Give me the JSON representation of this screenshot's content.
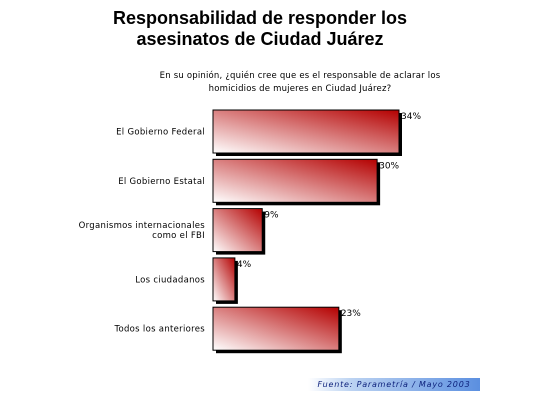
{
  "chart_data": {
    "type": "bar",
    "orientation": "horizontal",
    "title": "Responsabilidad de responder los asesinatos de Ciudad Juárez",
    "title_lines": [
      "Responsabilidad de responder los",
      "asesinatos de Ciudad Juárez"
    ],
    "subtitle": "En su opinión, ¿quién cree que es el responsable de aclarar los homicidios de mujeres en Ciudad Juárez?",
    "subtitle_lines": [
      "En su opinión, ¿quién cree que es el responsable de aclarar los",
      "homicidios de mujeres en Ciudad Juárez?"
    ],
    "categories": [
      [
        "El Gobierno Federal"
      ],
      [
        "El Gobierno Estatal"
      ],
      [
        "Organismos internacionales",
        "como el FBI"
      ],
      [
        "Los ciudadanos"
      ],
      [
        "Todos los anteriores"
      ]
    ],
    "values": [
      34,
      30,
      9,
      4,
      23
    ],
    "value_labels": [
      "34%",
      "30%",
      "9%",
      "4%",
      "23%"
    ],
    "xlim": [
      0,
      34
    ],
    "unit": "%",
    "grid": false,
    "bar_gradient": [
      "#ffffff",
      "#b40000"
    ],
    "shadow_color": "#000000"
  },
  "source": "Fuente: Parametría / Mayo 2003"
}
